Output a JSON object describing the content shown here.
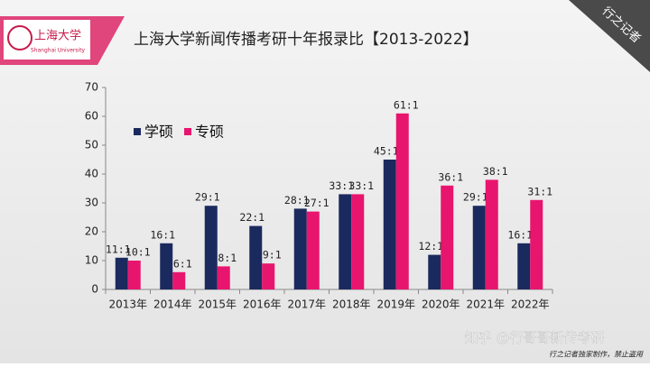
{
  "logo": {
    "name": "上海大学",
    "subtitle": "Shanghai University"
  },
  "corner": "行之记者",
  "chart_data": {
    "type": "bar",
    "title": "上海大学新闻传播考研十年报录比【2013-2022】",
    "categories": [
      "2013年",
      "2014年",
      "2015年",
      "2016年",
      "2017年",
      "2018年",
      "2019年",
      "2020年",
      "2021年",
      "2022年"
    ],
    "series": [
      {
        "name": "学硕",
        "color": "#1b2a5e",
        "values": [
          11,
          16,
          29,
          22,
          28,
          33,
          45,
          12,
          29,
          16
        ],
        "value_labels": [
          "11:1",
          "16:1",
          "29:1",
          "22:1",
          "28:1",
          "33:1",
          "45:1",
          "12:1",
          "29:1",
          "16:1"
        ]
      },
      {
        "name": "专硕",
        "color": "#e8156e",
        "values": [
          10,
          6,
          8,
          9,
          27,
          33,
          61,
          36,
          38,
          31
        ],
        "value_labels": [
          "10:1",
          "6:1",
          "8:1",
          "9:1",
          "27:1",
          "33:1",
          "61:1",
          "36:1",
          "38:1",
          "31:1"
        ]
      }
    ],
    "ylim": [
      0,
      70
    ],
    "yticks": [
      0,
      10,
      20,
      30,
      40,
      50,
      60,
      70
    ],
    "legend": "upper left"
  },
  "watermark": "知乎 @行哥哥新传考研",
  "footer": "行之记者独家制作，禁止盗用"
}
